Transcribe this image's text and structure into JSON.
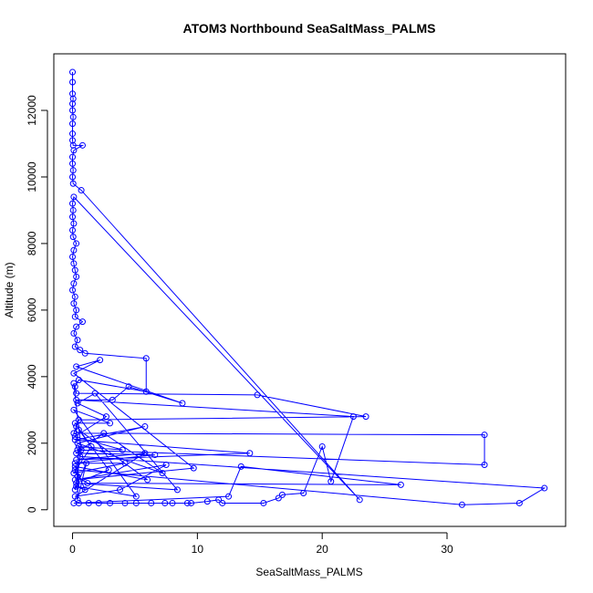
{
  "chart_data": {
    "type": "line",
    "title": "ATOM3 Northbound SeaSaltMass_PALMS",
    "xlabel": "SeaSaltMass_PALMS",
    "ylabel": "Altitude (m)",
    "xlim": [
      -1.5,
      39.5
    ],
    "ylim": [
      -500,
      13700
    ],
    "xticks": [
      0,
      10,
      20,
      30
    ],
    "yticks": [
      0,
      2000,
      4000,
      6000,
      8000,
      10000,
      12000
    ],
    "grid": false,
    "series_color": "#0000ff",
    "series": [
      {
        "points": [
          [
            0.0,
            13150
          ],
          [
            0.0,
            12850
          ],
          [
            0.0,
            12500
          ],
          [
            0.05,
            12350
          ],
          [
            0.0,
            12200
          ],
          [
            0.0,
            12000
          ],
          [
            0.05,
            11800
          ],
          [
            0.0,
            11600
          ],
          [
            0.0,
            11300
          ],
          [
            0.0,
            11100
          ],
          [
            0.05,
            10950
          ],
          [
            0.8,
            10950
          ],
          [
            0.1,
            10800
          ],
          [
            0.0,
            10600
          ],
          [
            0.0,
            10400
          ],
          [
            0.05,
            10200
          ],
          [
            0.0,
            10000
          ],
          [
            0.05,
            9800
          ],
          [
            0.7,
            9600
          ],
          [
            23.0,
            300
          ],
          [
            0.1,
            9400
          ],
          [
            0.0,
            9200
          ],
          [
            0.05,
            9000
          ],
          [
            0.0,
            8800
          ],
          [
            0.1,
            8600
          ],
          [
            0.0,
            8400
          ],
          [
            0.05,
            8200
          ],
          [
            0.3,
            8000
          ],
          [
            0.1,
            7800
          ],
          [
            0.0,
            7600
          ],
          [
            0.1,
            7400
          ],
          [
            0.2,
            7200
          ],
          [
            0.3,
            7000
          ],
          [
            0.1,
            6800
          ],
          [
            0.0,
            6600
          ],
          [
            0.2,
            6400
          ],
          [
            0.1,
            6200
          ],
          [
            0.3,
            6000
          ],
          [
            0.2,
            5800
          ],
          [
            0.8,
            5650
          ],
          [
            0.3,
            5500
          ],
          [
            0.1,
            5300
          ],
          [
            0.4,
            5100
          ],
          [
            0.2,
            4900
          ],
          [
            0.6,
            4800
          ],
          [
            1.0,
            4700
          ],
          [
            5.9,
            4550
          ],
          [
            5.9,
            3550
          ],
          [
            0.5,
            3900
          ],
          [
            0.2,
            3700
          ],
          [
            0.3,
            3500
          ],
          [
            14.8,
            3450
          ],
          [
            23.5,
            2800
          ],
          [
            0.5,
            2700
          ],
          [
            0.3,
            2500
          ],
          [
            0.1,
            2300
          ],
          [
            33.0,
            2250
          ],
          [
            33.0,
            1350
          ],
          [
            0.4,
            1800
          ],
          [
            0.6,
            1600
          ],
          [
            37.8,
            650
          ],
          [
            35.8,
            200
          ],
          [
            31.2,
            150
          ],
          [
            0.2,
            1200
          ],
          [
            0.4,
            1000
          ],
          [
            1.2,
            800
          ],
          [
            26.3,
            750
          ],
          [
            13.5,
            1300
          ],
          [
            12.5,
            400
          ],
          [
            0.1,
            200
          ],
          [
            0.5,
            200
          ],
          [
            1.3,
            200
          ],
          [
            2.1,
            200
          ],
          [
            3.0,
            200
          ],
          [
            4.2,
            200
          ],
          [
            5.1,
            200
          ],
          [
            6.3,
            200
          ],
          [
            7.4,
            200
          ],
          [
            8.0,
            200
          ],
          [
            9.2,
            200
          ],
          [
            9.5,
            200
          ],
          [
            10.8,
            250
          ],
          [
            11.7,
            300
          ],
          [
            12.0,
            200
          ],
          [
            15.3,
            200
          ],
          [
            16.5,
            350
          ],
          [
            16.8,
            450
          ],
          [
            18.5,
            500
          ],
          [
            20.0,
            1900
          ],
          [
            20.7,
            850
          ],
          [
            22.5,
            2800
          ],
          [
            0.3,
            3300
          ],
          [
            3.2,
            3300
          ],
          [
            4.5,
            3700
          ],
          [
            8.8,
            3200
          ],
          [
            0.3,
            4300
          ],
          [
            2.2,
            4500
          ],
          [
            0.1,
            4100
          ],
          [
            9.7,
            1250
          ],
          [
            0.2,
            900
          ],
          [
            7.5,
            1350
          ],
          [
            3.8,
            600
          ],
          [
            0.2,
            400
          ],
          [
            5.8,
            1700
          ],
          [
            0.3,
            1500
          ],
          [
            14.2,
            1700
          ],
          [
            0.2,
            2100
          ],
          [
            5.8,
            2500
          ],
          [
            0.4,
            2000
          ],
          [
            7.2,
            1100
          ],
          [
            2.5,
            2300
          ],
          [
            0.3,
            1700
          ],
          [
            6.6,
            1650
          ],
          [
            0.2,
            1400
          ],
          [
            4.2,
            1400
          ],
          [
            0.1,
            1100
          ],
          [
            1.5,
            1900
          ],
          [
            0.2,
            2600
          ],
          [
            3.0,
            2600
          ],
          [
            0.1,
            3000
          ],
          [
            5.1,
            400
          ],
          [
            0.3,
            700
          ],
          [
            1.0,
            600
          ],
          [
            0.2,
            1300
          ],
          [
            6.0,
            900
          ],
          [
            0.5,
            2400
          ],
          [
            2.9,
            1200
          ],
          [
            0.3,
            800
          ],
          [
            8.4,
            600
          ],
          [
            1.8,
            3500
          ],
          [
            0.4,
            3200
          ],
          [
            2.7,
            2800
          ],
          [
            0.2,
            2200
          ],
          [
            4.0,
            1800
          ],
          [
            0.5,
            1900
          ],
          [
            0.4,
            300
          ],
          [
            1.1,
            1400
          ],
          [
            0.2,
            600
          ],
          [
            0.7,
            1800
          ],
          [
            0.1,
            3800
          ]
        ]
      }
    ]
  }
}
